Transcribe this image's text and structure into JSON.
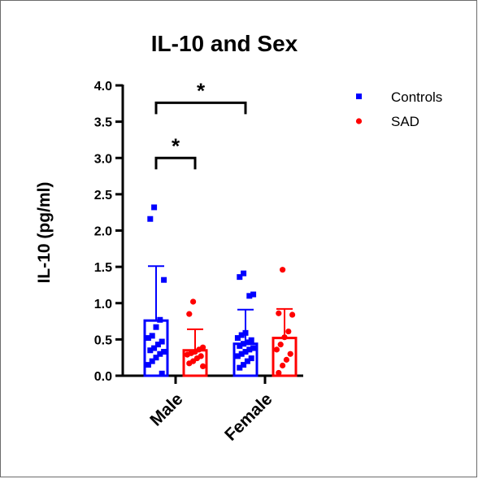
{
  "chart_data": {
    "type": "bar",
    "title": "IL-10 and Sex",
    "xlabel": "",
    "ylabel": "IL-10 (pg/ml)",
    "ylim": [
      0,
      4.0
    ],
    "yticks": [
      "0.0",
      "0.5",
      "1.0",
      "1.5",
      "2.0",
      "2.5",
      "3.0",
      "3.5",
      "4.0"
    ],
    "categories": [
      "Male",
      "Female"
    ],
    "series": [
      {
        "name": "Controls",
        "color": "#0000ff",
        "marker": "square",
        "means": [
          0.76,
          0.44
        ],
        "sd_upper": [
          1.51,
          0.91
        ],
        "points": [
          [
            2.32,
            2.16,
            1.32,
            0.77,
            0.67,
            0.55,
            0.52,
            0.47,
            0.43,
            0.38,
            0.35,
            0.33,
            0.3,
            0.25,
            0.2,
            0.15,
            0.03
          ],
          [
            1.41,
            1.36,
            1.12,
            1.1,
            0.59,
            0.56,
            0.52,
            0.49,
            0.46,
            0.44,
            0.41,
            0.38,
            0.36,
            0.33,
            0.3,
            0.27,
            0.24,
            0.2,
            0.15,
            0.11
          ]
        ]
      },
      {
        "name": "SAD",
        "color": "#ff0000",
        "marker": "circle",
        "means": [
          0.35,
          0.52
        ],
        "sd_upper": [
          0.64,
          0.92
        ],
        "points": [
          [
            1.02,
            0.85,
            0.39,
            0.36,
            0.33,
            0.31,
            0.29,
            0.27,
            0.24,
            0.2,
            0.17,
            0.13
          ],
          [
            1.46,
            0.86,
            0.84,
            0.61,
            0.53,
            0.43,
            0.36,
            0.3,
            0.22,
            0.14,
            0.04
          ]
        ]
      }
    ],
    "significance": [
      {
        "label": "*",
        "groups": [
          "Male Controls",
          "Male SAD"
        ],
        "y": 3.0
      },
      {
        "label": "*",
        "groups": [
          "Male Controls",
          "Female Controls"
        ],
        "y": 3.76
      }
    ],
    "legend": "top-right",
    "grid": false
  }
}
